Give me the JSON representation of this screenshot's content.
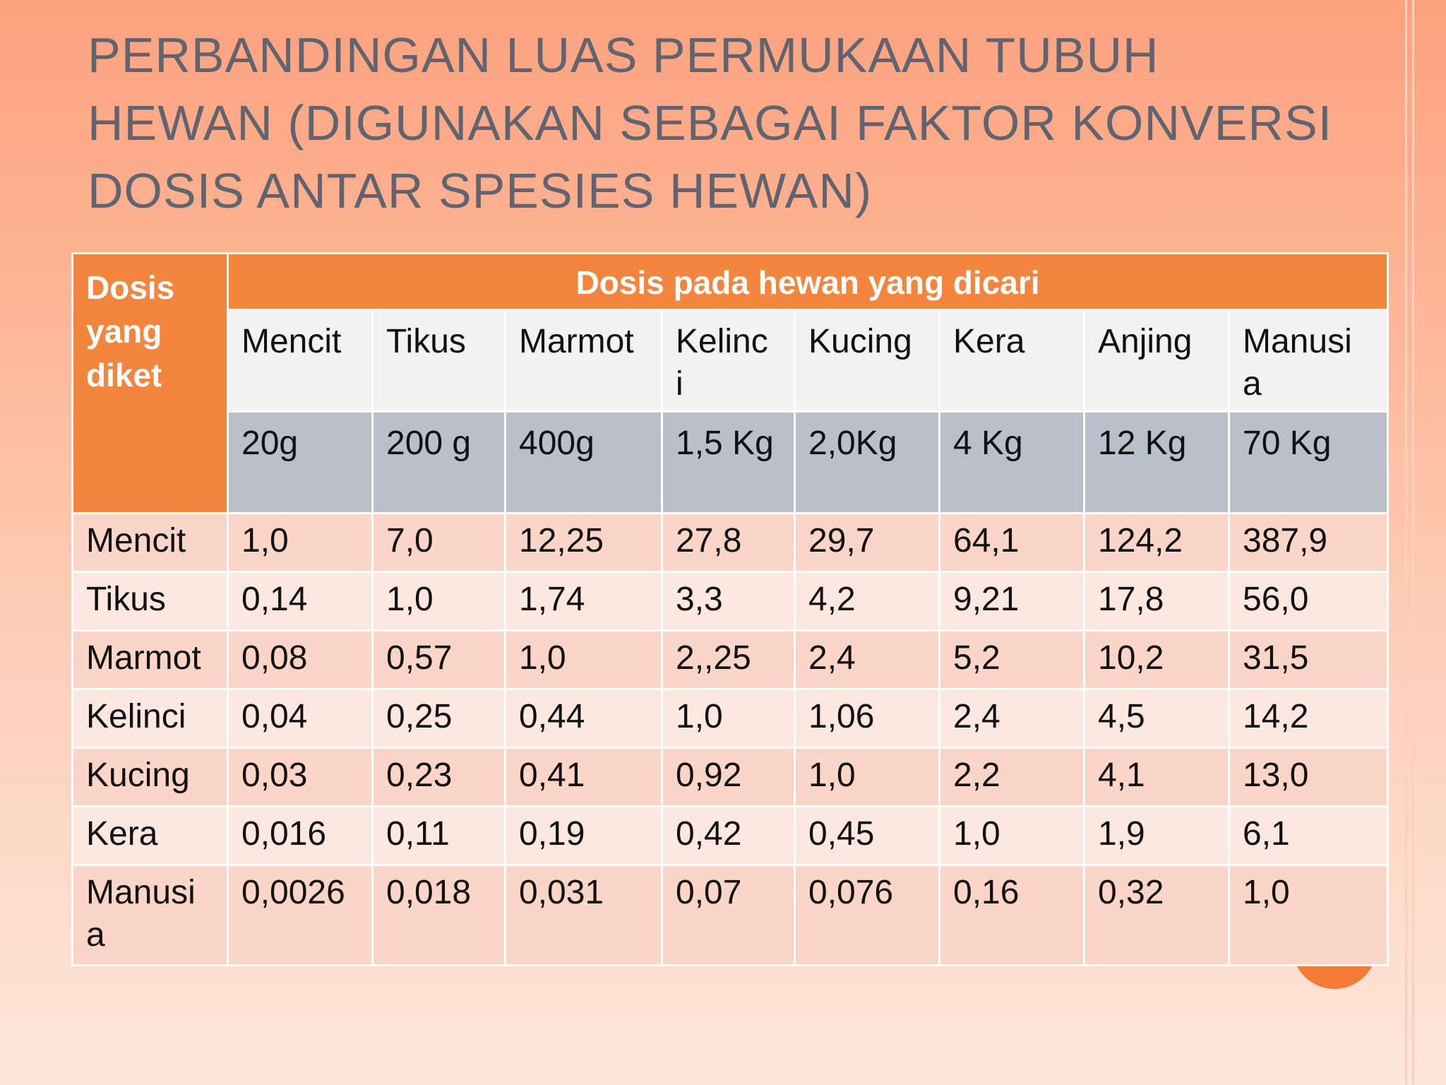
{
  "slide": {
    "title_lines": [
      "Perbandingan luas  permukaan tubuh",
      "hewan (digunakan sebagai faktor konversi",
      "dosis antar spesies hewan)"
    ]
  },
  "table": {
    "corner_header": "Dosis yang diket",
    "group_header": "Dosis pada hewan yang dicari",
    "columns": [
      {
        "species": "Mencit",
        "weight": "20g"
      },
      {
        "species": "Tikus",
        "weight": "200 g"
      },
      {
        "species": "Marmot",
        "weight": "400g"
      },
      {
        "species": "Kelinc i",
        "weight": "1,5 Kg"
      },
      {
        "species": "Kucing",
        "weight": "2,0Kg"
      },
      {
        "species": "Kera",
        "weight": "4 Kg"
      },
      {
        "species": "Anjing",
        "weight": "12 Kg"
      },
      {
        "species": "Manusi a",
        "weight": "70 Kg"
      }
    ],
    "rows": [
      {
        "label": "Mencit",
        "values": [
          "1,0",
          "7,0",
          "12,25",
          "27,8",
          "29,7",
          "64,1",
          "124,2",
          "387,9"
        ]
      },
      {
        "label": "Tikus",
        "values": [
          "0,14",
          "1,0",
          "1,74",
          "3,3",
          "4,2",
          "9,21",
          "17,8",
          "56,0"
        ]
      },
      {
        "label": "Marmot",
        "values": [
          "0,08",
          "0,57",
          "1,0",
          "2,,25",
          "2,4",
          "5,2",
          "10,2",
          "31,5"
        ]
      },
      {
        "label": "Kelinci",
        "values": [
          "0,04",
          "0,25",
          "0,44",
          "1,0",
          "1,06",
          "2,4",
          "4,5",
          "14,2"
        ]
      },
      {
        "label": "Kucing",
        "values": [
          "0,03",
          "0,23",
          "0,41",
          "0,92",
          "1,0",
          "2,2",
          "4,1",
          "13,0"
        ]
      },
      {
        "label": "Kera",
        "values": [
          "0,016",
          "0,11",
          "0,19",
          "0,42",
          "0,45",
          "1,0",
          "1,9",
          "6,1"
        ]
      },
      {
        "label": "Manusi a",
        "values": [
          "0,0026",
          "0,018",
          "0,031",
          "0,07",
          "0,076",
          "0,16",
          "0,32",
          "1,0"
        ]
      }
    ]
  }
}
